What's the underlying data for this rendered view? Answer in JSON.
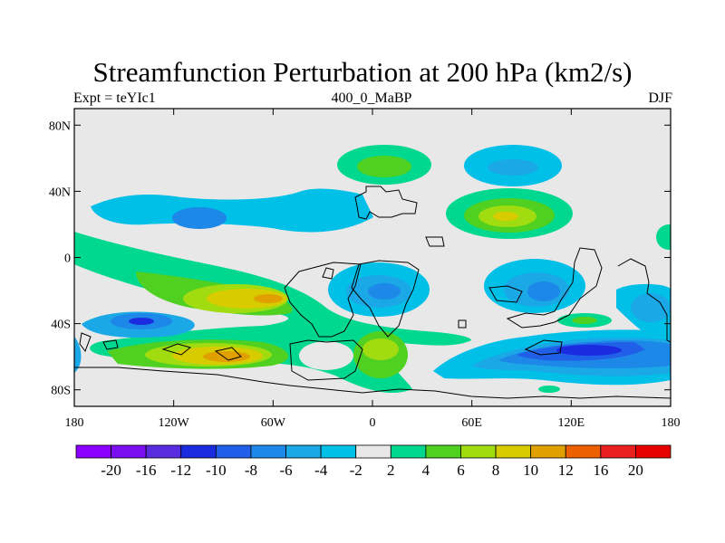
{
  "title": "Streamfunction Perturbation at 200 hPa (km2/s)",
  "subtitle_left": "Expt = teYIc1",
  "subtitle_center": "400_0_MaBP",
  "subtitle_right": "DJF",
  "chart_data": {
    "type": "heatmap",
    "variable": "Streamfunction Perturbation",
    "level": "200 hPa",
    "units": "km2/s",
    "lon_range": [
      -180,
      180
    ],
    "lat_range": [
      -90,
      90
    ],
    "x_ticks": [
      {
        "value": -180,
        "label": "180"
      },
      {
        "value": -120,
        "label": "120W"
      },
      {
        "value": -60,
        "label": "60W"
      },
      {
        "value": 0,
        "label": "0"
      },
      {
        "value": 60,
        "label": "60E"
      },
      {
        "value": 120,
        "label": "120E"
      },
      {
        "value": 180,
        "label": "180"
      }
    ],
    "y_ticks": [
      {
        "value": 80,
        "label": "80N"
      },
      {
        "value": 40,
        "label": "40N"
      },
      {
        "value": 0,
        "label": "0"
      },
      {
        "value": -40,
        "label": "40S"
      },
      {
        "value": -80,
        "label": "80S"
      }
    ],
    "colorbar": {
      "labels": [
        "-20",
        "-16",
        "-12",
        "-10",
        "-8",
        "-6",
        "-4",
        "-2",
        "2",
        "4",
        "6",
        "8",
        "10",
        "12",
        "16",
        "20"
      ],
      "colors": [
        "#8b00ff",
        "#7a10f0",
        "#5a2ce0",
        "#1a2be0",
        "#2060e8",
        "#1e88e8",
        "#1aa8e6",
        "#00c0e8",
        "#e8e8e8",
        "#00d890",
        "#50d020",
        "#a0dc10",
        "#d8cc00",
        "#e0a000",
        "#ec6000",
        "#e82020",
        "#e80000"
      ]
    }
  }
}
